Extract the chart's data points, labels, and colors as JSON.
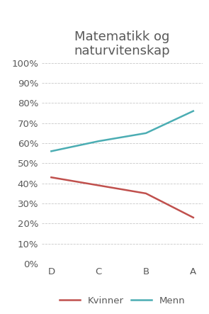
{
  "title": "Matematikk og\nnaturvitenskap",
  "categories": [
    "D",
    "C",
    "B",
    "A"
  ],
  "kvinner": [
    0.43,
    0.39,
    0.35,
    0.23
  ],
  "menn": [
    0.56,
    0.61,
    0.65,
    0.76
  ],
  "kvinner_color": "#c0504d",
  "menn_color": "#4badb3",
  "ylim": [
    0.0,
    1.0
  ],
  "yticks": [
    0.0,
    0.1,
    0.2,
    0.3,
    0.4,
    0.5,
    0.6,
    0.7,
    0.8,
    0.9,
    1.0
  ],
  "legend_labels": [
    "Kvinner",
    "Menn"
  ],
  "title_fontsize": 13,
  "tick_fontsize": 9.5,
  "legend_fontsize": 9.5,
  "linewidth": 1.8,
  "background_color": "#ffffff",
  "grid_color": "#c8c8c8",
  "text_color": "#595959"
}
